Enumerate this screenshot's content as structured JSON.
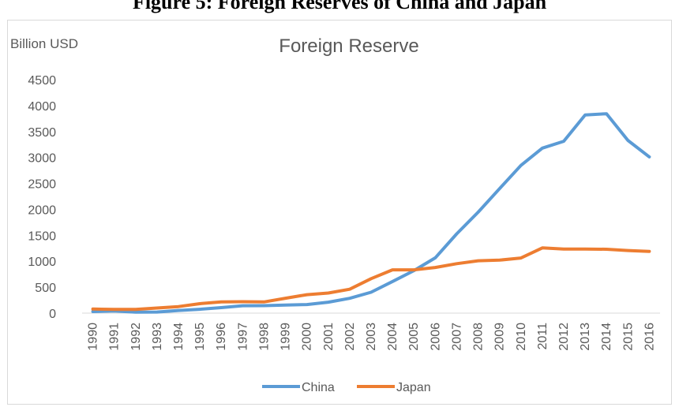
{
  "figure_caption": "Figure 5: Foreign Reserves of China and Japan",
  "chart_data": {
    "type": "line",
    "title": "Foreign Reserve",
    "ylabel": "Billion USD",
    "xlabel": "",
    "ylim": [
      0,
      4500
    ],
    "yticks": [
      0,
      500,
      1000,
      1500,
      2000,
      2500,
      3000,
      3500,
      4000,
      4500
    ],
    "categories": [
      "1990",
      "1991",
      "1992",
      "1993",
      "1994",
      "1995",
      "1996",
      "1997",
      "1998",
      "1999",
      "2000",
      "2001",
      "2002",
      "2003",
      "2004",
      "2005",
      "2006",
      "2007",
      "2008",
      "2009",
      "2010",
      "2011",
      "2012",
      "2013",
      "2014",
      "2015",
      "2016"
    ],
    "grid": false,
    "legend_position": "bottom",
    "series": [
      {
        "name": "China",
        "color": "#5b9bd5",
        "values": [
          30,
          43,
          20,
          22,
          52,
          75,
          107,
          143,
          145,
          155,
          166,
          212,
          286,
          403,
          610,
          819,
          1066,
          1528,
          1946,
          2399,
          2847,
          3181,
          3312,
          3821,
          3843,
          3330,
          3011
        ]
      },
      {
        "name": "Japan",
        "color": "#ed7d31",
        "values": [
          79,
          72,
          72,
          99,
          126,
          183,
          217,
          220,
          216,
          288,
          355,
          388,
          461,
          664,
          834,
          835,
          880,
          953,
          1009,
          1022,
          1062,
          1258,
          1236,
          1236,
          1231,
          1207,
          1190
        ]
      }
    ]
  }
}
